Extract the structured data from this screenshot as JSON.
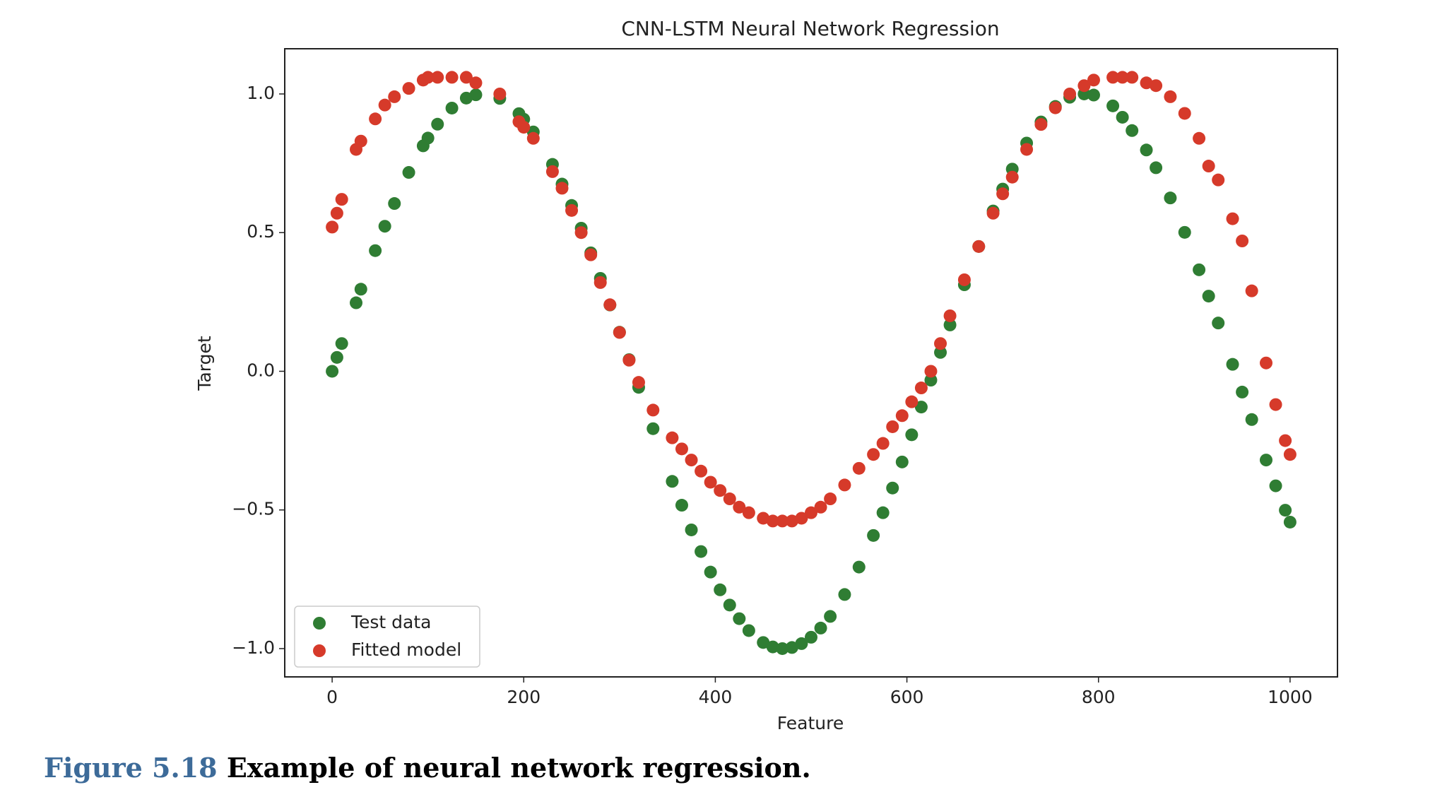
{
  "chart_data": {
    "type": "scatter",
    "title": "CNN-LSTM Neural Network Regression",
    "xlabel": "Feature",
    "ylabel": "Target",
    "x": [
      0,
      5,
      10,
      25,
      30,
      45,
      55,
      65,
      80,
      95,
      100,
      110,
      125,
      140,
      150,
      175,
      195,
      200,
      210,
      230,
      240,
      250,
      260,
      270,
      280,
      290,
      300,
      310,
      320,
      335,
      355,
      365,
      375,
      385,
      395,
      405,
      415,
      425,
      435,
      450,
      460,
      470,
      480,
      490,
      500,
      510,
      520,
      535,
      550,
      565,
      575,
      585,
      595,
      605,
      615,
      625,
      635,
      645,
      660,
      675,
      690,
      700,
      710,
      725,
      740,
      755,
      770,
      785,
      795,
      815,
      825,
      835,
      850,
      860,
      875,
      890,
      905,
      915,
      925,
      940,
      950,
      960,
      975,
      985,
      995,
      1000
    ],
    "series": [
      {
        "name": "Test data",
        "color": "#2f7d33",
        "values": [
          0,
          0.05,
          0.1,
          0.247,
          0.296,
          0.435,
          0.523,
          0.605,
          0.717,
          0.813,
          0.841,
          0.891,
          0.949,
          0.985,
          0.997,
          0.984,
          0.929,
          0.909,
          0.863,
          0.746,
          0.675,
          0.598,
          0.516,
          0.427,
          0.335,
          0.239,
          0.141,
          0.042,
          -0.058,
          -0.207,
          -0.397,
          -0.483,
          -0.572,
          -0.65,
          -0.724,
          -0.788,
          -0.843,
          -0.892,
          -0.935,
          -0.978,
          -0.994,
          -1.0,
          -0.996,
          -0.982,
          -0.959,
          -0.926,
          -0.884,
          -0.805,
          -0.706,
          -0.592,
          -0.51,
          -0.421,
          -0.327,
          -0.229,
          -0.129,
          -0.032,
          0.068,
          0.167,
          0.312,
          0.45,
          0.578,
          0.657,
          0.729,
          0.823,
          0.899,
          0.955,
          0.988,
          1.0,
          0.996,
          0.957,
          0.916,
          0.868,
          0.798,
          0.734,
          0.625,
          0.501,
          0.366,
          0.271,
          0.174,
          0.025,
          -0.075,
          -0.174,
          -0.32,
          -0.413,
          -0.501,
          -0.544
        ]
      },
      {
        "name": "Fitted model",
        "color": "#d63a2a",
        "values": [
          0.52,
          0.57,
          0.62,
          0.8,
          0.83,
          0.91,
          0.96,
          0.99,
          1.02,
          1.05,
          1.06,
          1.06,
          1.06,
          1.06,
          1.04,
          1.0,
          0.9,
          0.88,
          0.84,
          0.72,
          0.66,
          0.58,
          0.5,
          0.42,
          0.32,
          0.24,
          0.14,
          0.04,
          -0.04,
          -0.14,
          -0.24,
          -0.28,
          -0.32,
          -0.36,
          -0.4,
          -0.43,
          -0.46,
          -0.49,
          -0.51,
          -0.53,
          -0.54,
          -0.54,
          -0.54,
          -0.53,
          -0.51,
          -0.49,
          -0.46,
          -0.41,
          -0.35,
          -0.3,
          -0.26,
          -0.2,
          -0.16,
          -0.11,
          -0.06,
          0.0,
          0.1,
          0.2,
          0.33,
          0.45,
          0.57,
          0.64,
          0.7,
          0.8,
          0.89,
          0.95,
          1.0,
          1.03,
          1.05,
          1.06,
          1.06,
          1.06,
          1.04,
          1.03,
          0.99,
          0.93,
          0.84,
          0.74,
          0.69,
          0.55,
          0.47,
          0.29,
          0.03,
          -0.12,
          -0.25,
          -0.3
        ]
      }
    ],
    "xlim": [
      -49.5,
      1049.5
    ],
    "ylim": [
      -1.102,
      1.163
    ],
    "xticks": [
      0,
      200,
      400,
      600,
      800,
      1000
    ],
    "yticks": [
      {
        "value": -1.0,
        "label": "−1.0"
      },
      {
        "value": -0.5,
        "label": "−0.5"
      },
      {
        "value": 0.0,
        "label": "0.0"
      },
      {
        "value": 0.5,
        "label": "0.5"
      },
      {
        "value": 1.0,
        "label": "1.0"
      }
    ],
    "legend": "lower left"
  },
  "caption": {
    "label": "Figure 5.18",
    "text": "Example of neural network regression."
  }
}
